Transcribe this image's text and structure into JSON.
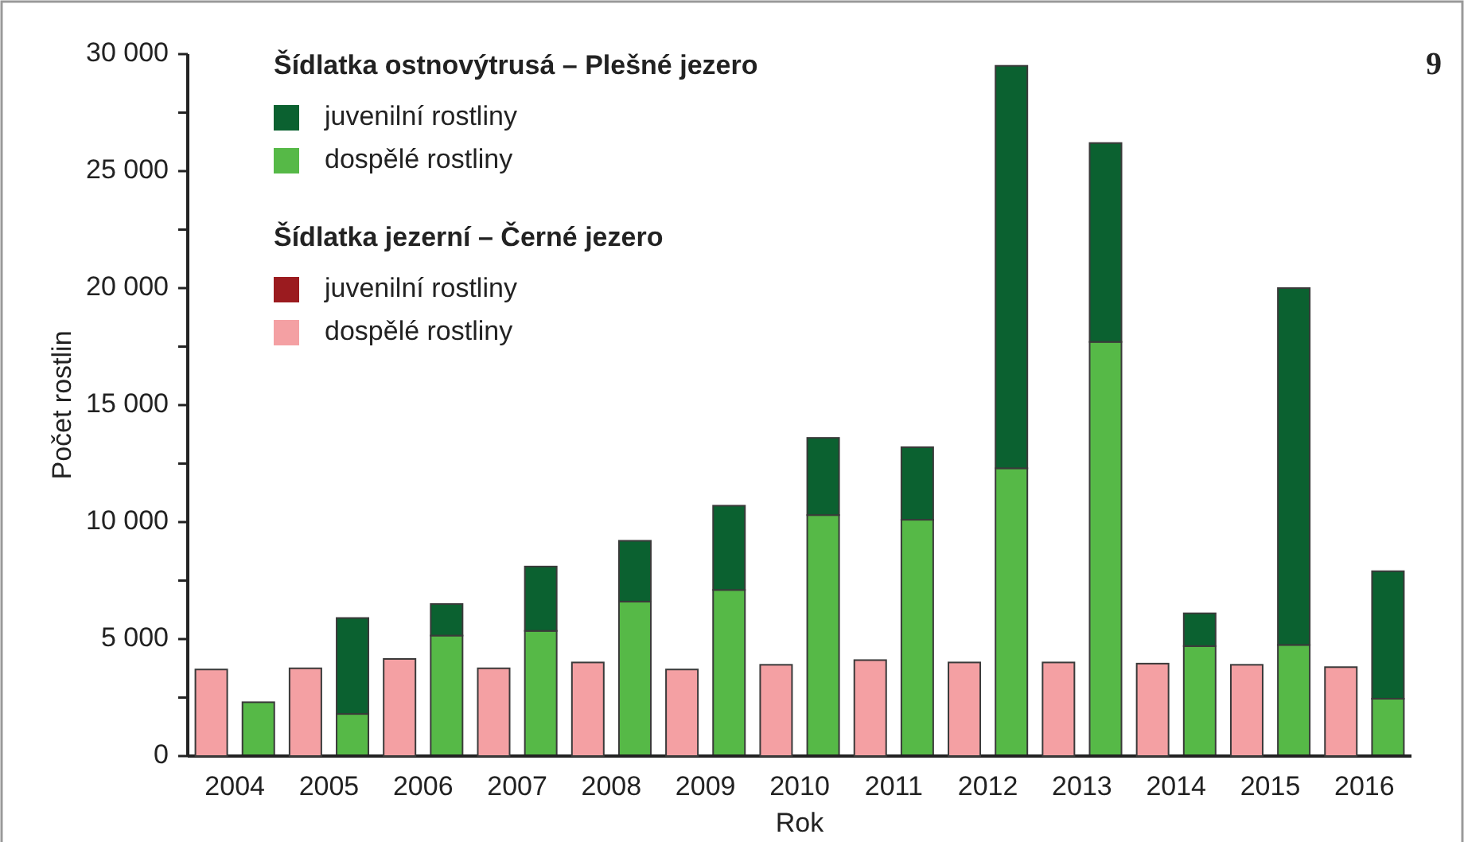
{
  "chart_data": [
    {
      "type": "bar",
      "stacked": true,
      "xlabel": "Rok",
      "ylabel": "Počet rostlin",
      "legend_title": "Šídlatka ostnovýtrusá – Plešné jezero",
      "categories": [
        "2004",
        "2005",
        "2006",
        "2007",
        "2008",
        "2009",
        "2010",
        "2011",
        "2012",
        "2013",
        "2014",
        "2015",
        "2016"
      ],
      "series": [
        {
          "name": "dospělé rostliny",
          "color": "#56b947",
          "values": [
            2300,
            1800,
            5150,
            5350,
            6600,
            7100,
            10300,
            10100,
            12300,
            17700,
            4700,
            4750,
            2450
          ]
        },
        {
          "name": "juvenilní rostliny",
          "color": "#0b6130",
          "values": [
            0,
            4100,
            1350,
            2750,
            2600,
            3600,
            3300,
            3100,
            17200,
            8500,
            1400,
            15250,
            5450
          ]
        }
      ],
      "ylim": [
        0,
        30000
      ],
      "yticks": [
        {
          "value": 0,
          "label": "0"
        },
        {
          "value": 2500,
          "label": null
        },
        {
          "value": 5000,
          "label": "5 000"
        },
        {
          "value": 7500,
          "label": null
        },
        {
          "value": 10000,
          "label": "10 000"
        },
        {
          "value": 12500,
          "label": null
        },
        {
          "value": 15000,
          "label": "15 000"
        },
        {
          "value": 17500,
          "label": null
        },
        {
          "value": 20000,
          "label": "20 000"
        },
        {
          "value": 22500,
          "label": null
        },
        {
          "value": 25000,
          "label": "25 000"
        },
        {
          "value": 27500,
          "label": null
        },
        {
          "value": 30000,
          "label": "30 000"
        }
      ],
      "legend": "top left",
      "annotations": [
        "9"
      ]
    },
    {
      "type": "bar",
      "stacked": true,
      "legend_title": "Šídlatka jezerní – Černé jezero",
      "tick_labels": false,
      "categories": [
        "2004",
        "2005",
        "2006",
        "2007",
        "2008",
        "2009",
        "2010",
        "2011",
        "2012",
        "2013",
        "2014",
        "2015",
        "2016"
      ],
      "series": [
        {
          "name": "dospělé rostliny",
          "color": "#f4a0a3",
          "values": [
            3700,
            3750,
            4150,
            3750,
            4000,
            3700,
            3900,
            4100,
            4000,
            4000,
            3950,
            3900,
            3800
          ]
        },
        {
          "name": "juvenilní rostliny",
          "color": "#9b1b1f",
          "values": [
            0,
            0,
            0,
            0,
            0,
            0,
            0,
            0,
            0,
            0,
            0,
            0,
            0
          ]
        }
      ],
      "ylim": [
        0,
        30000
      ],
      "legend": "top left"
    }
  ]
}
